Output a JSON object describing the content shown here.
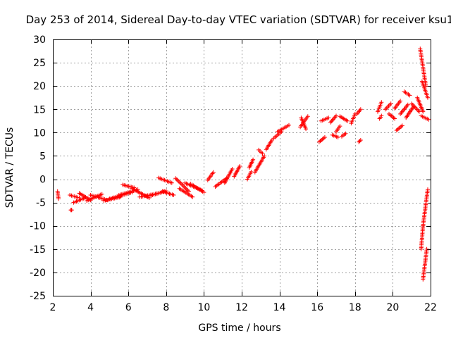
{
  "chart_data": {
    "type": "scatter",
    "title": "Day 253 of 2014, Sidereal Day-to-day VTEC variation (SDTVAR) for receiver ksu1",
    "xlabel": "GPS time / hours",
    "ylabel": "SDTVAR / TECUs",
    "xlim": [
      2,
      22
    ],
    "ylim": [
      -25,
      30
    ],
    "xticks": [
      2,
      4,
      6,
      8,
      10,
      12,
      14,
      16,
      18,
      20,
      22
    ],
    "yticks": [
      -25,
      -20,
      -15,
      -10,
      -5,
      0,
      5,
      10,
      15,
      20,
      25,
      30
    ],
    "grid": true,
    "marker": "+",
    "color": "#ff0000",
    "segments": [
      {
        "x0": 2.25,
        "x1": 2.3,
        "y0": -2.6,
        "y1": -4.2
      },
      {
        "x0": 2.95,
        "x1": 3.0,
        "y0": -6.6,
        "y1": -6.6
      },
      {
        "x0": 2.9,
        "x1": 3.4,
        "y0": -3.4,
        "y1": -4.0
      },
      {
        "x0": 3.1,
        "x1": 3.7,
        "y0": -5.0,
        "y1": -4.0
      },
      {
        "x0": 3.4,
        "x1": 4.0,
        "y0": -3.0,
        "y1": -4.5
      },
      {
        "x0": 3.8,
        "x1": 4.6,
        "y0": -4.6,
        "y1": -3.2
      },
      {
        "x0": 4.0,
        "x1": 4.9,
        "y0": -3.4,
        "y1": -4.5
      },
      {
        "x0": 4.7,
        "x1": 5.6,
        "y0": -4.6,
        "y1": -3.8
      },
      {
        "x0": 5.0,
        "x1": 6.2,
        "y0": -4.2,
        "y1": -2.8
      },
      {
        "x0": 5.5,
        "x1": 6.5,
        "y0": -3.4,
        "y1": -2.2
      },
      {
        "x0": 5.7,
        "x1": 6.3,
        "y0": -1.2,
        "y1": -1.8
      },
      {
        "x0": 6.2,
        "x1": 7.1,
        "y0": -2.0,
        "y1": -4.0
      },
      {
        "x0": 6.6,
        "x1": 7.6,
        "y0": -3.8,
        "y1": -3.0
      },
      {
        "x0": 7.2,
        "x1": 8.0,
        "y0": -3.5,
        "y1": -2.5
      },
      {
        "x0": 7.6,
        "x1": 8.3,
        "y0": 0.3,
        "y1": -0.8
      },
      {
        "x0": 7.8,
        "x1": 8.4,
        "y0": -2.6,
        "y1": -3.4
      },
      {
        "x0": 8.5,
        "x1": 9.2,
        "y0": 0.2,
        "y1": -2.6
      },
      {
        "x0": 8.7,
        "x1": 9.4,
        "y0": -2.0,
        "y1": -3.8
      },
      {
        "x0": 9.0,
        "x1": 9.9,
        "y0": -0.8,
        "y1": -2.4
      },
      {
        "x0": 9.3,
        "x1": 10.0,
        "y0": -1.0,
        "y1": -2.8
      },
      {
        "x0": 10.2,
        "x1": 10.5,
        "y0": -0.2,
        "y1": 1.5
      },
      {
        "x0": 10.6,
        "x1": 11.2,
        "y0": -1.6,
        "y1": 0.2
      },
      {
        "x0": 11.1,
        "x1": 11.5,
        "y0": -0.8,
        "y1": 2.2
      },
      {
        "x0": 11.6,
        "x1": 11.9,
        "y0": 0.6,
        "y1": 2.8
      },
      {
        "x0": 12.3,
        "x1": 12.5,
        "y0": 0.0,
        "y1": 1.6
      },
      {
        "x0": 12.4,
        "x1": 12.6,
        "y0": 2.5,
        "y1": 4.2
      },
      {
        "x0": 12.7,
        "x1": 13.2,
        "y0": 1.5,
        "y1": 5.0
      },
      {
        "x0": 12.9,
        "x1": 13.1,
        "y0": 6.3,
        "y1": 5.5
      },
      {
        "x0": 13.3,
        "x1": 13.6,
        "y0": 6.4,
        "y1": 8.4
      },
      {
        "x0": 13.7,
        "x1": 14.1,
        "y0": 8.8,
        "y1": 10.2
      },
      {
        "x0": 13.9,
        "x1": 14.5,
        "y0": 10.2,
        "y1": 11.6
      },
      {
        "x0": 15.1,
        "x1": 15.5,
        "y0": 11.2,
        "y1": 13.5
      },
      {
        "x0": 15.15,
        "x1": 15.4,
        "y0": 13.2,
        "y1": 10.8
      },
      {
        "x0": 16.1,
        "x1": 16.4,
        "y0": 8.0,
        "y1": 9.0
      },
      {
        "x0": 16.2,
        "x1": 16.6,
        "y0": 12.5,
        "y1": 13.2
      },
      {
        "x0": 16.7,
        "x1": 17.0,
        "y0": 12.2,
        "y1": 13.6
      },
      {
        "x0": 16.8,
        "x1": 17.1,
        "y0": 9.5,
        "y1": 9.0
      },
      {
        "x0": 17.0,
        "x1": 17.2,
        "y0": 10.2,
        "y1": 11.4
      },
      {
        "x0": 17.2,
        "x1": 17.6,
        "y0": 13.5,
        "y1": 12.5
      },
      {
        "x0": 17.3,
        "x1": 17.5,
        "y0": 9.2,
        "y1": 9.8
      },
      {
        "x0": 17.8,
        "x1": 18.0,
        "y0": 12.0,
        "y1": 14.0
      },
      {
        "x0": 18.1,
        "x1": 18.3,
        "y0": 14.0,
        "y1": 15.0
      },
      {
        "x0": 18.2,
        "x1": 18.3,
        "y0": 8.0,
        "y1": 8.4
      },
      {
        "x0": 19.2,
        "x1": 19.4,
        "y0": 14.5,
        "y1": 16.5
      },
      {
        "x0": 19.3,
        "x1": 19.4,
        "y0": 13.0,
        "y1": 13.6
      },
      {
        "x0": 19.6,
        "x1": 19.9,
        "y0": 15.0,
        "y1": 16.2
      },
      {
        "x0": 19.8,
        "x1": 20.1,
        "y0": 14.0,
        "y1": 13.0
      },
      {
        "x0": 20.1,
        "x1": 20.4,
        "y0": 15.2,
        "y1": 16.8
      },
      {
        "x0": 20.2,
        "x1": 20.5,
        "y0": 10.5,
        "y1": 11.5
      },
      {
        "x0": 20.4,
        "x1": 20.8,
        "y0": 14.0,
        "y1": 16.0
      },
      {
        "x0": 20.6,
        "x1": 20.9,
        "y0": 18.8,
        "y1": 18.0
      },
      {
        "x0": 20.7,
        "x1": 21.1,
        "y0": 13.2,
        "y1": 15.6
      },
      {
        "x0": 21.0,
        "x1": 21.4,
        "y0": 16.2,
        "y1": 14.5
      },
      {
        "x0": 21.3,
        "x1": 21.6,
        "y0": 17.5,
        "y1": 14.5
      },
      {
        "x0": 21.5,
        "x1": 21.9,
        "y0": 13.6,
        "y1": 12.8
      },
      {
        "x0": 21.45,
        "x1": 21.75,
        "y0": 28.0,
        "y1": 20.0
      },
      {
        "x0": 21.55,
        "x1": 21.85,
        "y0": 21.0,
        "y1": 17.5
      },
      {
        "x0": 21.5,
        "x1": 21.6,
        "y0": -15.0,
        "y1": -10.0
      },
      {
        "x0": 21.6,
        "x1": 21.85,
        "y0": -10.0,
        "y1": -2.2
      },
      {
        "x0": 21.6,
        "x1": 21.8,
        "y0": -21.5,
        "y1": -15.0
      }
    ]
  }
}
